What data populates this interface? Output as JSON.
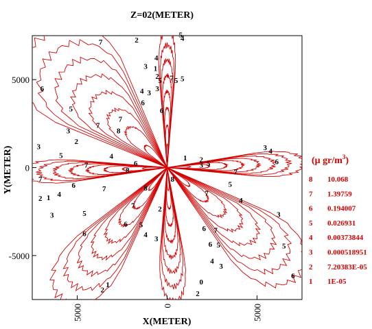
{
  "chart_data": {
    "type": "contour",
    "title": "Z=02(METER)",
    "xlabel": "X(METER)",
    "ylabel": "Y(METER)",
    "xlim": [
      -7500,
      7500
    ],
    "ylim": [
      -7500,
      7500
    ],
    "x_ticks": [
      -5000,
      0,
      5000
    ],
    "x_tick_labels": [
      "5000",
      "0",
      "5000"
    ],
    "y_ticks": [
      5000,
      0,
      -5000
    ],
    "y_tick_labels": [
      "5000",
      "0",
      "-5000"
    ],
    "line_color": "#d40000",
    "legend": {
      "title": "(μ gr/m³)",
      "title_prefix": "(μ gr/m",
      "title_sup": "3",
      "title_suffix": ")",
      "placement": "right",
      "levels": [
        {
          "level": "8",
          "value": "10.068"
        },
        {
          "level": "7",
          "value": "1.39759"
        },
        {
          "level": "6",
          "value": "0.194007"
        },
        {
          "level": "5",
          "value": "0.026931"
        },
        {
          "level": "4",
          "value": "0.00373844"
        },
        {
          "level": "3",
          "value": "0.000518951"
        },
        {
          "level": "2",
          "value": "7.20383E-05"
        },
        {
          "level": "1",
          "value": "1E-05"
        }
      ]
    },
    "plumes": [
      {
        "name": "north-west",
        "angle": 135,
        "reach": 10200,
        "halfwidth": 23
      },
      {
        "name": "north",
        "angle": 90,
        "reach": 7800,
        "halfwidth": 4
      },
      {
        "name": "east",
        "angle": 2,
        "reach": 7600,
        "halfwidth": 7
      },
      {
        "name": "south-east",
        "angle": -40,
        "reach": 9500,
        "halfwidth": 16
      },
      {
        "name": "south",
        "angle": -87,
        "reach": 7600,
        "halfwidth": 7
      },
      {
        "name": "south-west",
        "angle": -128,
        "reach": 9500,
        "halfwidth": 14
      },
      {
        "name": "west",
        "angle": -178,
        "reach": 8000,
        "halfwidth": 6
      }
    ],
    "contour_labels": [
      {
        "x": -3700,
        "y": 7100,
        "text": "7"
      },
      {
        "x": -1700,
        "y": 7200,
        "text": "2"
      },
      {
        "x": -1200,
        "y": 5700,
        "text": "3"
      },
      {
        "x": -1400,
        "y": 4300,
        "text": "4"
      },
      {
        "x": -1000,
        "y": 4200,
        "text": "3"
      },
      {
        "x": -1350,
        "y": 3650,
        "text": "6"
      },
      {
        "x": -600,
        "y": 6200,
        "text": "4"
      },
      {
        "x": -650,
        "y": 5600,
        "text": "1"
      },
      {
        "x": -550,
        "y": 5150,
        "text": "2"
      },
      {
        "x": -400,
        "y": 4900,
        "text": "5"
      },
      {
        "x": -550,
        "y": 4450,
        "text": "3"
      },
      {
        "x": -300,
        "y": 3200,
        "text": "6"
      },
      {
        "x": 250,
        "y": 5050,
        "text": "7"
      },
      {
        "x": 500,
        "y": 4900,
        "text": "5"
      },
      {
        "x": 850,
        "y": 5000,
        "text": "5"
      },
      {
        "x": 850,
        "y": 7300,
        "text": "4"
      },
      {
        "x": 750,
        "y": 7500,
        "text": "5"
      },
      {
        "x": -6950,
        "y": 4450,
        "text": "6"
      },
      {
        "x": -5350,
        "y": 3300,
        "text": "5"
      },
      {
        "x": -5500,
        "y": 2050,
        "text": "3"
      },
      {
        "x": -5050,
        "y": 1450,
        "text": "2"
      },
      {
        "x": -3850,
        "y": 2350,
        "text": "7"
      },
      {
        "x": -2700,
        "y": 2050,
        "text": "8"
      },
      {
        "x": -2600,
        "y": 2700,
        "text": "7"
      },
      {
        "x": -3100,
        "y": 600,
        "text": "4"
      },
      {
        "x": -1750,
        "y": 200,
        "text": "6"
      },
      {
        "x": -7150,
        "y": 1150,
        "text": "3"
      },
      {
        "x": -5900,
        "y": 650,
        "text": "5"
      },
      {
        "x": -4500,
        "y": 100,
        "text": "7"
      },
      {
        "x": -2200,
        "y": -200,
        "text": "8"
      },
      {
        "x": -7050,
        "y": -700,
        "text": "7"
      },
      {
        "x": -5200,
        "y": -1050,
        "text": "6"
      },
      {
        "x": -3500,
        "y": -1250,
        "text": "7"
      },
      {
        "x": -6000,
        "y": -1550,
        "text": "4"
      },
      {
        "x": -7050,
        "y": -1800,
        "text": "2"
      },
      {
        "x": -6600,
        "y": -1750,
        "text": "1"
      },
      {
        "x": -6400,
        "y": -2750,
        "text": "3"
      },
      {
        "x": -4600,
        "y": -2650,
        "text": "5"
      },
      {
        "x": -4600,
        "y": -3800,
        "text": "6"
      },
      {
        "x": -1900,
        "y": -2200,
        "text": "7"
      },
      {
        "x": -1200,
        "y": -1200,
        "text": "8"
      },
      {
        "x": -2300,
        "y": -3250,
        "text": "6"
      },
      {
        "x": -1450,
        "y": -3300,
        "text": "5"
      },
      {
        "x": -1200,
        "y": -3850,
        "text": "4"
      },
      {
        "x": -400,
        "y": -2400,
        "text": "2"
      },
      {
        "x": -600,
        "y": -4100,
        "text": "3"
      },
      {
        "x": -3600,
        "y": -7000,
        "text": "2"
      },
      {
        "x": -3300,
        "y": -6700,
        "text": "1"
      },
      {
        "x": 1000,
        "y": 500,
        "text": "1"
      },
      {
        "x": 1900,
        "y": 400,
        "text": "2"
      },
      {
        "x": 2300,
        "y": 200,
        "text": "5"
      },
      {
        "x": 1900,
        "y": 100,
        "text": "3"
      },
      {
        "x": 3800,
        "y": -300,
        "text": "7"
      },
      {
        "x": 5450,
        "y": 1100,
        "text": "3"
      },
      {
        "x": 5750,
        "y": 900,
        "text": "4"
      },
      {
        "x": 6100,
        "y": 300,
        "text": "6"
      },
      {
        "x": 3500,
        "y": -1000,
        "text": "5"
      },
      {
        "x": 4100,
        "y": -1900,
        "text": "4"
      },
      {
        "x": 6200,
        "y": -2700,
        "text": "3"
      },
      {
        "x": 2200,
        "y": -1500,
        "text": "7"
      },
      {
        "x": 300,
        "y": -700,
        "text": "8"
      },
      {
        "x": 2050,
        "y": -3500,
        "text": "6"
      },
      {
        "x": 2700,
        "y": -3600,
        "text": "7"
      },
      {
        "x": 2400,
        "y": -4400,
        "text": "6"
      },
      {
        "x": 2850,
        "y": -4450,
        "text": "5"
      },
      {
        "x": 2500,
        "y": -5350,
        "text": "4"
      },
      {
        "x": 3000,
        "y": -5650,
        "text": "3"
      },
      {
        "x": 6500,
        "y": -4500,
        "text": "5"
      },
      {
        "x": 7000,
        "y": -6200,
        "text": "6"
      },
      {
        "x": 1700,
        "y": -7200,
        "text": "2"
      },
      {
        "x": 1900,
        "y": -6550,
        "text": "0"
      }
    ]
  }
}
